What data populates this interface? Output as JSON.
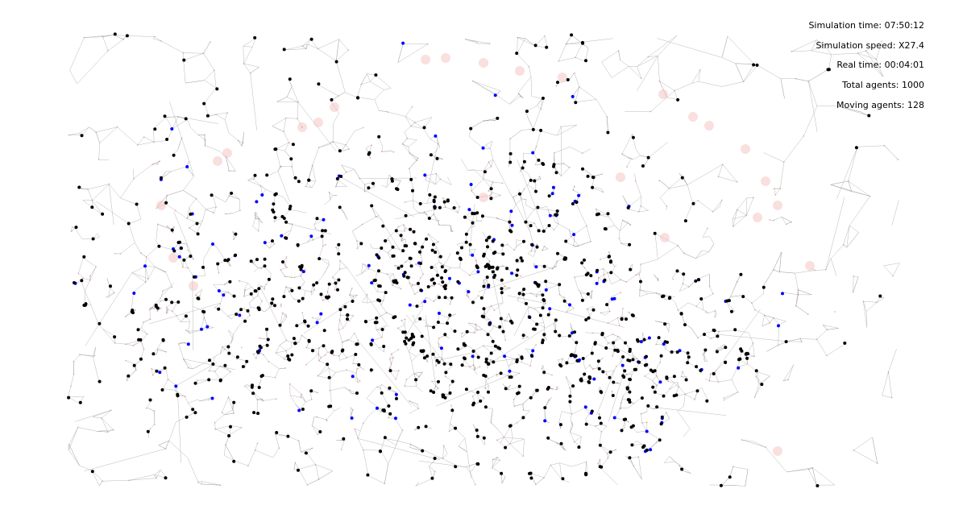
{
  "stats": {
    "sim_time": "Simulation time: 07:50:12",
    "sim_speed": "Simulation speed: X27.4",
    "real_time": "Real time: 00:04:01",
    "total_agents": "Total agents: 1000",
    "moving_agents": "Moving agents: 128"
  },
  "agents": {
    "total": 1000,
    "moving": 128,
    "stationary_color": "#000000",
    "moving_color": "#0000ff"
  },
  "network": {
    "edge_color": "#a0a0a0",
    "node_color": "#d97a7a",
    "hotspot_color": "#f4b8b8"
  }
}
